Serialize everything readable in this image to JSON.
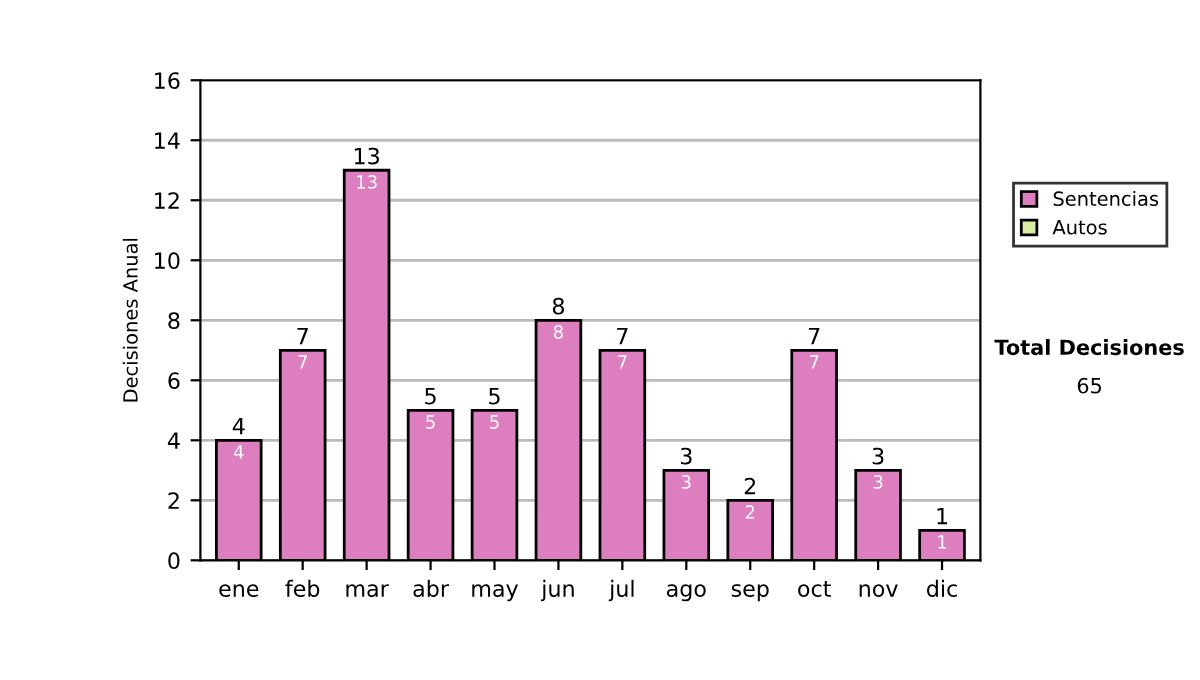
{
  "chart_data": {
    "type": "bar",
    "ylabel": "Decisiones Anual",
    "categories": [
      "ene",
      "feb",
      "mar",
      "abr",
      "may",
      "jun",
      "jul",
      "ago",
      "sep",
      "oct",
      "nov",
      "dic"
    ],
    "series": [
      {
        "name": "Sentencias",
        "color": "#dd7fbf",
        "values": [
          4,
          7,
          13,
          5,
          5,
          8,
          7,
          3,
          2,
          7,
          3,
          1
        ],
        "value_labels": [
          "4",
          "7",
          "13",
          "5",
          "5",
          "8",
          "7",
          "3",
          "2",
          "7",
          "3",
          "1"
        ]
      },
      {
        "name": "Autos",
        "color": "#d9eea3",
        "values": [
          null,
          null,
          null,
          null,
          null,
          null,
          null,
          null,
          null,
          null,
          null,
          null
        ]
      }
    ],
    "stacked": true,
    "totals": [
      "4",
      "7",
      "13",
      "5",
      "5",
      "8",
      "7",
      "3",
      "2",
      "7",
      "3",
      "1"
    ],
    "ylim": [
      0,
      16
    ],
    "yticks": [
      0,
      2,
      4,
      6,
      8,
      10,
      12,
      14,
      16
    ],
    "grid": "y",
    "legend": "right",
    "annotations": [
      "Total Decisiones",
      "65"
    ]
  }
}
